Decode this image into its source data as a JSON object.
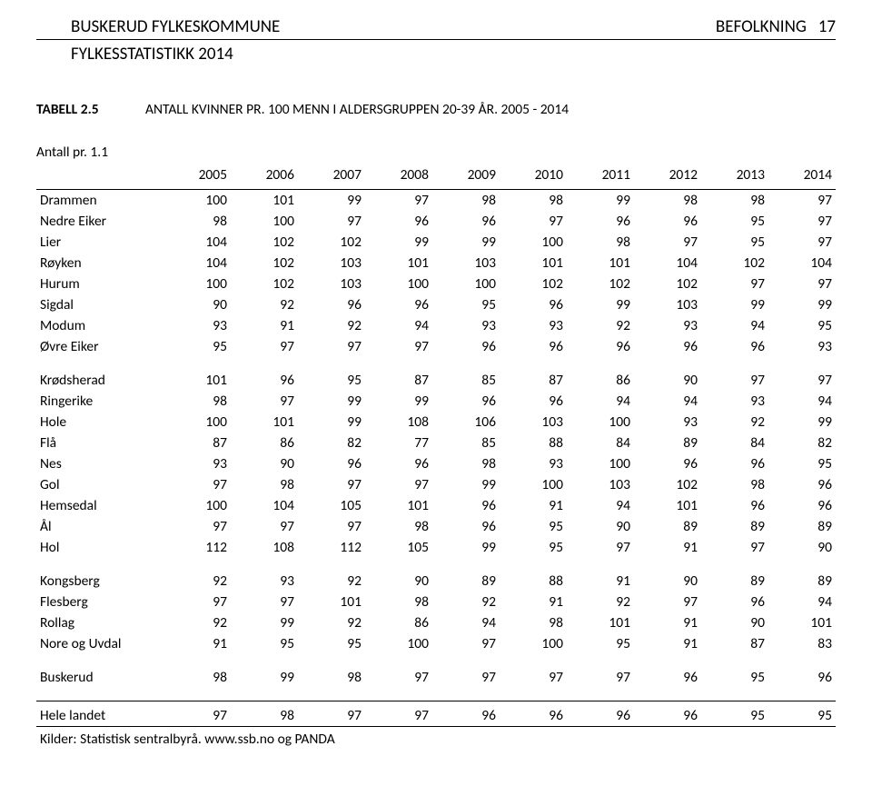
{
  "header": {
    "org": "BUSKERUD FYLKESKOMMUNE",
    "sub": "FYLKESSTATISTIKK 2014",
    "section": "BEFOLKNING",
    "page": "17"
  },
  "title": {
    "label": "TABELL 2.5",
    "text": "ANTALL KVINNER PR. 100 MENN I ALDERSGRUPPEN 20-39 ÅR.  2005 - 2014"
  },
  "unit": "Antall pr. 1.1",
  "years": [
    "2005",
    "2006",
    "2007",
    "2008",
    "2009",
    "2010",
    "2011",
    "2012",
    "2013",
    "2014"
  ],
  "groups": [
    {
      "rows": [
        {
          "label": "Drammen",
          "v": [
            100,
            101,
            99,
            97,
            98,
            98,
            99,
            98,
            98,
            97
          ]
        },
        {
          "label": "Nedre Eiker",
          "v": [
            98,
            100,
            97,
            96,
            96,
            97,
            96,
            96,
            95,
            97
          ]
        },
        {
          "label": "Lier",
          "v": [
            104,
            102,
            102,
            99,
            99,
            100,
            98,
            97,
            95,
            97
          ]
        },
        {
          "label": "Røyken",
          "v": [
            104,
            102,
            103,
            101,
            103,
            101,
            101,
            104,
            102,
            104
          ]
        },
        {
          "label": "Hurum",
          "v": [
            100,
            102,
            103,
            100,
            100,
            102,
            102,
            102,
            97,
            97
          ]
        },
        {
          "label": "Sigdal",
          "v": [
            90,
            92,
            96,
            96,
            95,
            96,
            99,
            103,
            99,
            99
          ]
        },
        {
          "label": "Modum",
          "v": [
            93,
            91,
            92,
            94,
            93,
            93,
            92,
            93,
            94,
            95
          ]
        },
        {
          "label": "Øvre Eiker",
          "v": [
            95,
            97,
            97,
            97,
            96,
            96,
            96,
            96,
            96,
            93
          ]
        }
      ]
    },
    {
      "rows": [
        {
          "label": "Krødsherad",
          "v": [
            101,
            96,
            95,
            87,
            85,
            87,
            86,
            90,
            97,
            97
          ]
        },
        {
          "label": "Ringerike",
          "v": [
            98,
            97,
            99,
            99,
            96,
            96,
            94,
            94,
            93,
            94
          ]
        },
        {
          "label": "Hole",
          "v": [
            100,
            101,
            99,
            108,
            106,
            103,
            100,
            93,
            92,
            99
          ]
        },
        {
          "label": "Flå",
          "v": [
            87,
            86,
            82,
            77,
            85,
            88,
            84,
            89,
            84,
            82
          ]
        },
        {
          "label": "Nes",
          "v": [
            93,
            90,
            96,
            96,
            98,
            93,
            100,
            96,
            96,
            95
          ]
        },
        {
          "label": "Gol",
          "v": [
            97,
            98,
            97,
            97,
            99,
            100,
            103,
            102,
            98,
            96
          ]
        },
        {
          "label": "Hemsedal",
          "v": [
            100,
            104,
            105,
            101,
            96,
            91,
            94,
            101,
            96,
            96
          ]
        },
        {
          "label": "Ål",
          "v": [
            97,
            97,
            97,
            98,
            96,
            95,
            90,
            89,
            89,
            89
          ]
        },
        {
          "label": "Hol",
          "v": [
            112,
            108,
            112,
            105,
            99,
            95,
            97,
            91,
            97,
            90
          ]
        }
      ]
    },
    {
      "rows": [
        {
          "label": "Kongsberg",
          "v": [
            92,
            93,
            92,
            90,
            89,
            88,
            91,
            90,
            89,
            89
          ]
        },
        {
          "label": "Flesberg",
          "v": [
            97,
            97,
            101,
            98,
            92,
            91,
            92,
            97,
            96,
            94
          ]
        },
        {
          "label": "Rollag",
          "v": [
            92,
            99,
            92,
            86,
            94,
            98,
            101,
            91,
            90,
            101
          ]
        },
        {
          "label": "Nore og Uvdal",
          "v": [
            91,
            95,
            95,
            100,
            97,
            100,
            95,
            91,
            87,
            83
          ]
        }
      ]
    },
    {
      "rows": [
        {
          "label": "Buskerud",
          "v": [
            98,
            99,
            98,
            97,
            97,
            97,
            97,
            96,
            95,
            96
          ]
        }
      ]
    },
    {
      "topBorder": true,
      "rows": [
        {
          "label": "Hele landet",
          "v": [
            97,
            98,
            97,
            97,
            96,
            96,
            96,
            96,
            95,
            95
          ]
        }
      ]
    }
  ],
  "source": "Kilder: Statistisk sentralbyrå. www.ssb.no og PANDA"
}
